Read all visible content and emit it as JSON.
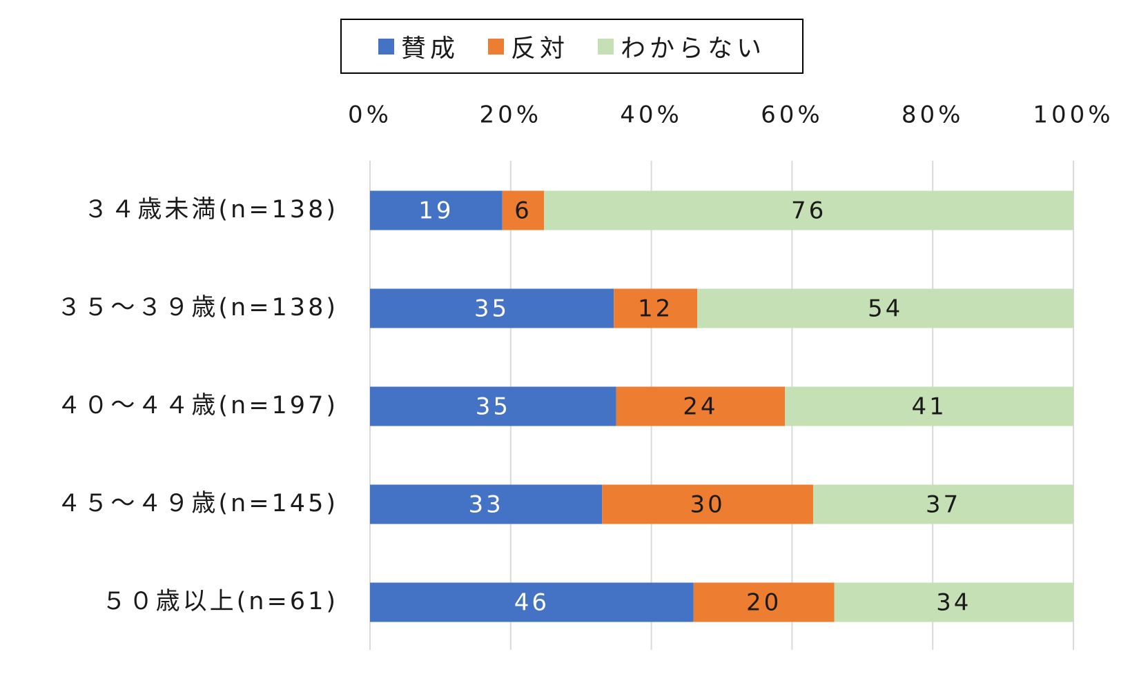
{
  "chart_data": {
    "type": "bar",
    "orientation": "horizontal",
    "stacked": true,
    "categories": [
      "３４歳未満(n=138)",
      "３５～３９歳(n=138)",
      "４０～４４歳(n=197)",
      "４５～４９歳(n=145)",
      "５０歳以上(n=61)"
    ],
    "series": [
      {
        "name": "賛成",
        "color": "#4472C4",
        "label_color": "#ffffff",
        "values": [
          19,
          35,
          35,
          33,
          46
        ]
      },
      {
        "name": "反対",
        "color": "#ED7D31",
        "label_color": "#1a1a1a",
        "values": [
          6,
          12,
          24,
          30,
          20
        ]
      },
      {
        "name": "わからない",
        "color": "#C5E0B4",
        "label_color": "#1a1a1a",
        "values": [
          76,
          54,
          41,
          37,
          34
        ]
      }
    ],
    "x_ticks": [
      "0%",
      "20%",
      "40%",
      "60%",
      "80%",
      "100%"
    ],
    "xlim": [
      0,
      100
    ],
    "x_axis_position": "top",
    "grid": true,
    "gridline_color": "#d9d9d9",
    "legend_position": "top",
    "title": "",
    "xlabel": "",
    "ylabel": ""
  }
}
